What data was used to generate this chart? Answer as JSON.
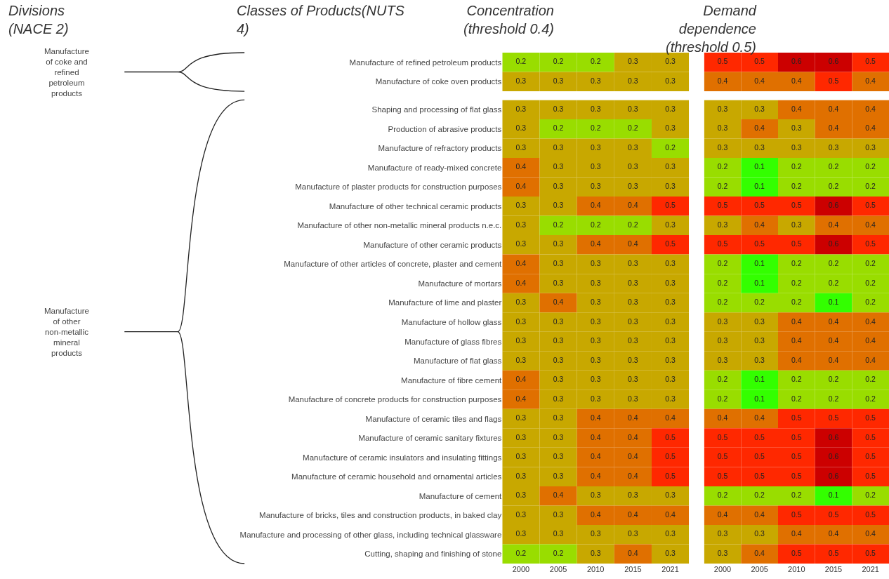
{
  "chart_data": [
    {
      "type": "heatmap",
      "title": "Concentration (threshold 0.4)",
      "annotations": [
        "Divisions (NACE 2)",
        "Classes of Products(NUTS 4)",
        "Manufacture of coke and refined petroleum products"
      ],
      "tick_labels": "y",
      "data_labels": true,
      "categories": [
        "2000",
        "2005",
        "2010",
        "2015",
        "2021"
      ],
      "y_categories": [
        "Manufacture of refined petroleum products",
        "Manufacture of coke oven products"
      ],
      "cells": [
        [
          0.2,
          0.2,
          0.2,
          0.3,
          0.3
        ],
        [
          0.3,
          0.3,
          0.3,
          0.3,
          0.3
        ]
      ]
    },
    {
      "type": "heatmap",
      "title": "Demand dependence (threshold 0.5)",
      "tick_labels": false,
      "data_labels": true,
      "categories": [
        "2000",
        "2005",
        "2010",
        "2015",
        "2021"
      ],
      "y_categories": [
        null,
        null
      ],
      "cells": [
        [
          0.5,
          0.5,
          0.6,
          0.6,
          0.5
        ],
        [
          0.4,
          0.4,
          0.4,
          0.5,
          0.4
        ]
      ]
    },
    {
      "type": "heatmap",
      "annotations": [
        "Manufacture of other non-metallic mineral products"
      ],
      "data_labels": true,
      "categories": [
        "2000",
        "2005",
        "2010",
        "2015",
        "2021"
      ],
      "y_categories": [
        "Shaping and processing of flat glass",
        "Production of abrasive products",
        "Manufacture of refractory products",
        "Manufacture of ready-mixed concrete",
        "Manufacture of plaster products for construction purposes",
        "Manufacture of other technical ceramic products",
        "Manufacture of other non-metallic mineral products n.e.c.",
        "Manufacture of other ceramic products",
        "Manufacture of other articles of concrete, plaster and cement",
        "Manufacture of mortars",
        "Manufacture of lime and plaster",
        "Manufacture of hollow glass",
        "Manufacture of glass fibres",
        "Manufacture of flat glass",
        "Manufacture of fibre cement",
        "Manufacture of concrete products for construction purposes",
        "Manufacture of ceramic tiles and flags",
        "Manufacture of ceramic sanitary fixtures",
        "Manufacture of ceramic insulators and insulating fittings",
        "Manufacture of ceramic household and ornamental articles",
        "Manufacture of cement",
        "Manufacture of bricks, tiles and construction products, in baked clay",
        "Manufacture and processing of other glass, including technical glassware",
        "Cutting, shaping and finishing of stone"
      ],
      "cells": [
        [
          0.3,
          0.3,
          0.3,
          0.3,
          0.3
        ],
        [
          0.3,
          0.2,
          0.2,
          0.2,
          0.3
        ],
        [
          0.3,
          0.3,
          0.3,
          0.3,
          0.2
        ],
        [
          0.4,
          0.3,
          0.3,
          0.3,
          0.3
        ],
        [
          0.4,
          0.3,
          0.3,
          0.3,
          0.3
        ],
        [
          0.3,
          0.3,
          0.4,
          0.4,
          0.5
        ],
        [
          0.3,
          0.2,
          0.2,
          0.2,
          0.3
        ],
        [
          0.3,
          0.3,
          0.4,
          0.4,
          0.5
        ],
        [
          0.4,
          0.3,
          0.3,
          0.3,
          0.3
        ],
        [
          0.4,
          0.3,
          0.3,
          0.3,
          0.3
        ],
        [
          0.3,
          0.4,
          0.3,
          0.3,
          0.3
        ],
        [
          0.3,
          0.3,
          0.3,
          0.3,
          0.3
        ],
        [
          0.3,
          0.3,
          0.3,
          0.3,
          0.3
        ],
        [
          0.3,
          0.3,
          0.3,
          0.3,
          0.3
        ],
        [
          0.4,
          0.3,
          0.3,
          0.3,
          0.3
        ],
        [
          0.4,
          0.3,
          0.3,
          0.3,
          0.3
        ],
        [
          0.3,
          0.3,
          0.4,
          0.4,
          0.4
        ],
        [
          0.3,
          0.3,
          0.4,
          0.4,
          0.5
        ],
        [
          0.3,
          0.3,
          0.4,
          0.4,
          0.5
        ],
        [
          0.3,
          0.3,
          0.4,
          0.4,
          0.5
        ],
        [
          0.3,
          0.4,
          0.3,
          0.3,
          0.3
        ],
        [
          0.3,
          0.3,
          0.4,
          0.4,
          0.4
        ],
        [
          0.3,
          0.3,
          0.3,
          0.3,
          0.3
        ],
        [
          0.2,
          0.2,
          0.3,
          0.4,
          0.3
        ]
      ]
    },
    {
      "type": "heatmap",
      "tick_labels": "x",
      "data_labels": true,
      "categories": [
        "2000",
        "2005",
        "2010",
        "2015",
        "2021"
      ],
      "y_categories": [
        null,
        null,
        null,
        null,
        null,
        null,
        null,
        null,
        null,
        null,
        null,
        null,
        null,
        null,
        null,
        null,
        null,
        null,
        null,
        null,
        null,
        null,
        null,
        null
      ],
      "cells": [
        [
          0.3,
          0.3,
          0.4,
          0.4,
          0.4
        ],
        [
          0.3,
          0.4,
          0.3,
          0.4,
          0.4
        ],
        [
          0.3,
          0.3,
          0.3,
          0.3,
          0.3
        ],
        [
          0.2,
          0.1,
          0.2,
          0.2,
          0.2
        ],
        [
          0.2,
          0.1,
          0.2,
          0.2,
          0.2
        ],
        [
          0.5,
          0.5,
          0.5,
          0.6,
          0.5
        ],
        [
          0.3,
          0.4,
          0.3,
          0.4,
          0.4
        ],
        [
          0.5,
          0.5,
          0.5,
          0.6,
          0.5
        ],
        [
          0.2,
          0.1,
          0.2,
          0.2,
          0.2
        ],
        [
          0.2,
          0.1,
          0.2,
          0.2,
          0.2
        ],
        [
          0.2,
          0.2,
          0.2,
          0.1,
          0.2
        ],
        [
          0.3,
          0.3,
          0.4,
          0.4,
          0.4
        ],
        [
          0.3,
          0.3,
          0.4,
          0.4,
          0.4
        ],
        [
          0.3,
          0.3,
          0.4,
          0.4,
          0.4
        ],
        [
          0.2,
          0.1,
          0.2,
          0.2,
          0.2
        ],
        [
          0.2,
          0.1,
          0.2,
          0.2,
          0.2
        ],
        [
          0.4,
          0.4,
          0.5,
          0.5,
          0.5
        ],
        [
          0.5,
          0.5,
          0.5,
          0.6,
          0.5
        ],
        [
          0.5,
          0.5,
          0.5,
          0.6,
          0.5
        ],
        [
          0.5,
          0.5,
          0.5,
          0.6,
          0.5
        ],
        [
          0.2,
          0.2,
          0.2,
          0.1,
          0.2
        ],
        [
          0.4,
          0.4,
          0.5,
          0.5,
          0.5
        ],
        [
          0.3,
          0.3,
          0.4,
          0.4,
          0.4
        ],
        [
          0.3,
          0.4,
          0.5,
          0.5,
          0.5
        ]
      ]
    }
  ]
}
